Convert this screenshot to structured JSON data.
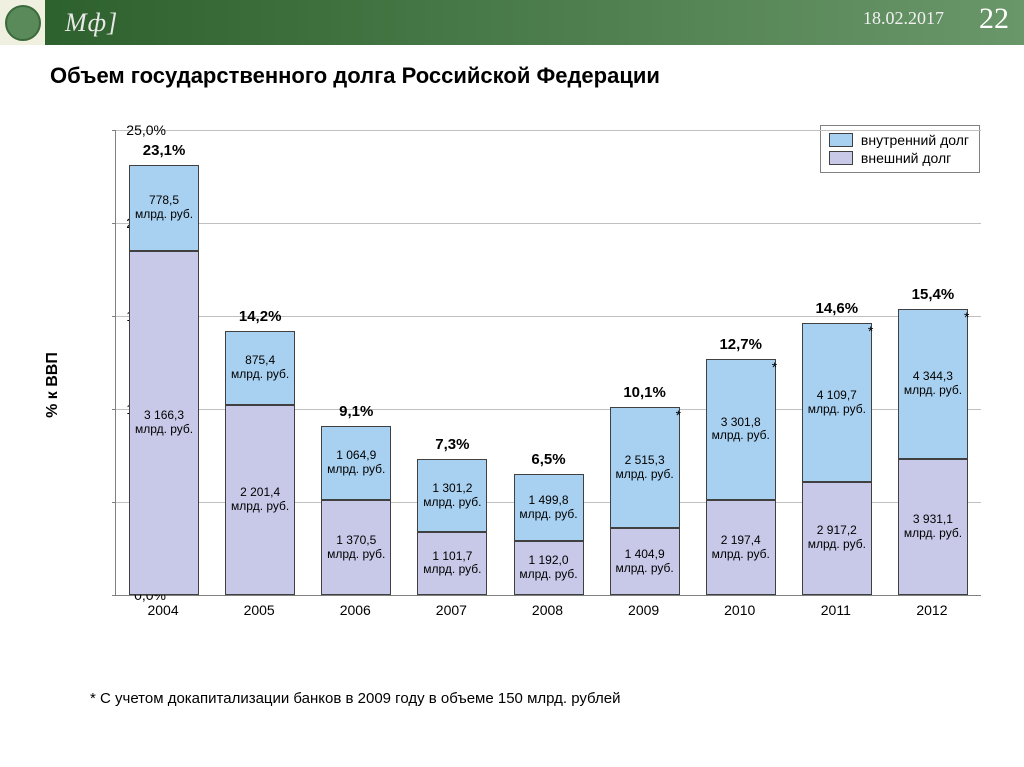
{
  "header": {
    "brand": "Мф]",
    "date": "18.02.2017",
    "page": "22"
  },
  "title": "Объем государственного долга Российской Федерации",
  "chart": {
    "type": "stacked-bar",
    "ylabel": "% к ВВП",
    "ylim_max": 25.0,
    "ytick_step": 5.0,
    "yticks": [
      "0,0%",
      "5,0%",
      "10,0%",
      "15,0%",
      "20,0%",
      "25,0%"
    ],
    "grid_color": "#c0c0c0",
    "axis_color": "#808080",
    "categories": [
      "2004",
      "2005",
      "2006",
      "2007",
      "2008",
      "2009",
      "2010",
      "2011",
      "2012"
    ],
    "series": {
      "internal": {
        "label": "внутренний долг",
        "color": "#a8d0f0"
      },
      "external": {
        "label": "внешний долг",
        "color": "#c8c8e8"
      }
    },
    "unit_label": "млрд. руб.",
    "bars": [
      {
        "year": "2004",
        "total_pct": 23.1,
        "total_label": "23,1%",
        "ext_pct": 18.5,
        "ext_val": "3 166,3",
        "int_val": "778,5",
        "star": false
      },
      {
        "year": "2005",
        "total_pct": 14.2,
        "total_label": "14,2%",
        "ext_pct": 10.2,
        "ext_val": "2 201,4",
        "int_val": "875,4",
        "star": false
      },
      {
        "year": "2006",
        "total_pct": 9.1,
        "total_label": "9,1%",
        "ext_pct": 5.1,
        "ext_val": "1 370,5",
        "int_val": "1 064,9",
        "star": false
      },
      {
        "year": "2007",
        "total_pct": 7.3,
        "total_label": "7,3%",
        "ext_pct": 3.4,
        "ext_val": "1 101,7",
        "int_val": "1 301,2",
        "star": false
      },
      {
        "year": "2008",
        "total_pct": 6.5,
        "total_label": "6,5%",
        "ext_pct": 2.9,
        "ext_val": "1 192,0",
        "int_val": "1 499,8",
        "star": false
      },
      {
        "year": "2009",
        "total_pct": 10.1,
        "total_label": "10,1%",
        "ext_pct": 3.6,
        "ext_val": "1 404,9",
        "int_val": "2 515,3",
        "star": true
      },
      {
        "year": "2010",
        "total_pct": 12.7,
        "total_label": "12,7%",
        "ext_pct": 5.1,
        "ext_val": "2 197,4",
        "int_val": "3 301,8",
        "star": true
      },
      {
        "year": "2011",
        "total_pct": 14.6,
        "total_label": "14,6%",
        "ext_pct": 6.1,
        "ext_val": "2 917,2",
        "int_val": "4 109,7",
        "star": true
      },
      {
        "year": "2012",
        "total_pct": 15.4,
        "total_label": "15,4%",
        "ext_pct": 7.3,
        "ext_val": "3 931,1",
        "int_val": "4 344,3",
        "star": true
      }
    ]
  },
  "footnote": "* С учетом докапитализации банков в 2009 году в объеме 150 млрд. рублей"
}
